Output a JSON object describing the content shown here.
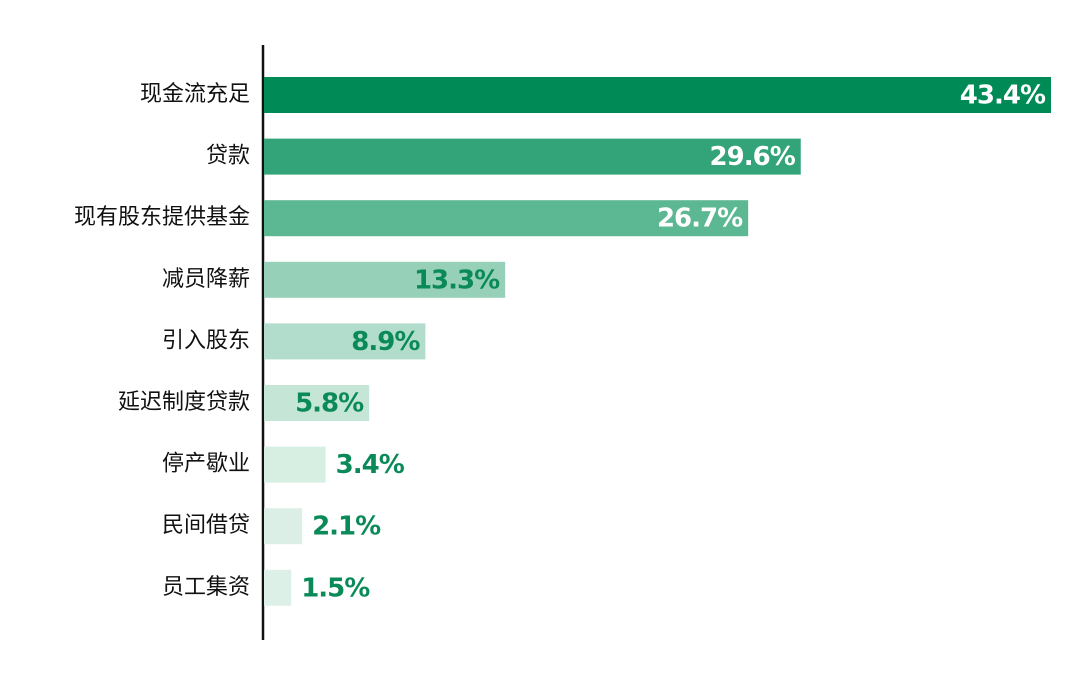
{
  "chart_data": {
    "type": "bar",
    "orientation": "horizontal",
    "categories": [
      "现金流充足",
      "贷款",
      "现有股东提供基金",
      "减员降薪",
      "引入股东",
      "延迟制度贷款",
      "停产歇业",
      "民间借贷",
      "员工集资"
    ],
    "values": [
      43.4,
      29.6,
      26.7,
      13.3,
      8.9,
      5.8,
      3.4,
      2.1,
      1.5
    ],
    "value_labels": [
      "43.4%",
      "29.6%",
      "26.7%",
      "13.3%",
      "8.9%",
      "5.8%",
      "3.4%",
      "2.1%",
      "1.5%"
    ],
    "colors": [
      "#008a56",
      "#33a379",
      "#5cb793",
      "#97d0b8",
      "#b2dccb",
      "#c5e5d7",
      "#d7eee3",
      "#dbefe6",
      "#ddf0e7"
    ],
    "label_colors": [
      "#ffffff",
      "#ffffff",
      "#ffffff",
      "#0a8a58",
      "#0a8a58",
      "#0a8a58",
      "#0a8a58",
      "#0a8a58",
      "#0a8a58"
    ]
  }
}
